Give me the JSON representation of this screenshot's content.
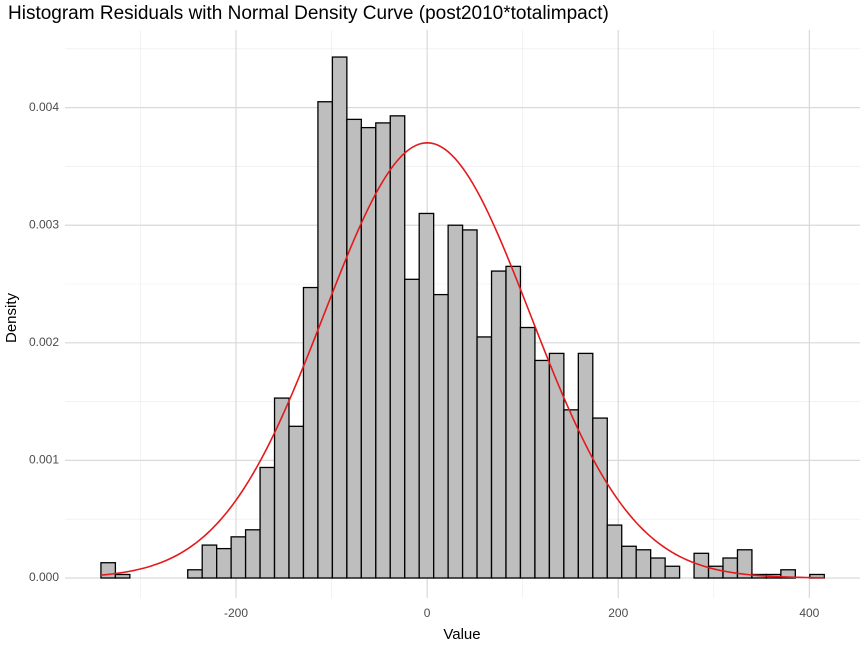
{
  "chart_data": {
    "type": "histogram",
    "title": "Histogram Residuals with Normal Density Curve (post2010*totalimpact)",
    "x_label": "Value",
    "y_label": "Density",
    "bins": [
      -341.4,
      -326.26,
      -311.12,
      -295.98,
      -280.84,
      -265.7,
      -250.56,
      -235.42,
      -220.28,
      -205.14,
      -190.0,
      -174.86,
      -159.72,
      -144.58,
      -129.44,
      -114.3,
      -99.16,
      -84.02,
      -68.88,
      -53.74,
      -38.6,
      -23.46,
      -8.32,
      6.82,
      21.96,
      37.1,
      52.24,
      67.38,
      82.52,
      97.66,
      112.8,
      127.94,
      143.08,
      158.22,
      173.36,
      188.5,
      203.64,
      218.78,
      233.92,
      249.06,
      264.2,
      279.34,
      294.48,
      309.62,
      324.76,
      339.9,
      355.04,
      370.18,
      385.32,
      400.46,
      415.6
    ],
    "values": [
      0.00013,
      3e-05,
      0,
      0,
      0,
      0,
      7e-05,
      0.00028,
      0.00025,
      0.00035,
      0.00041,
      0.00094,
      0.00153,
      0.00129,
      0.00247,
      0.00405,
      0.00443,
      0.0039,
      0.00383,
      0.00387,
      0.00393,
      0.00254,
      0.0031,
      0.00241,
      0.003,
      0.00296,
      0.00205,
      0.00261,
      0.00265,
      0.00213,
      0.00185,
      0.00191,
      0.00143,
      0.00191,
      0.00136,
      0.00045,
      0.00027,
      0.00024,
      0.00017,
      0.0001,
      0,
      0.00021,
      0.0001,
      0.00017,
      0.00024,
      3e-05,
      3e-05,
      7e-05,
      0,
      3e-05
    ],
    "color": "#bebebe",
    "edge_color": "#000000",
    "curve": {
      "mean": 0,
      "sd": 107.8,
      "color": "#e41a1c"
    },
    "xlim": [
      -379,
      453
    ],
    "ylim": [
      -0.00017,
      0.00466
    ],
    "xticks": [
      -200,
      0,
      200,
      400
    ],
    "yticks": [
      {
        "value": 0,
        "label": "0.000"
      },
      {
        "value": 0.001,
        "label": "0.001"
      },
      {
        "value": 0.002,
        "label": "0.002"
      },
      {
        "value": 0.003,
        "label": "0.003"
      },
      {
        "value": 0.004,
        "label": "0.004"
      }
    ],
    "grid": true
  }
}
